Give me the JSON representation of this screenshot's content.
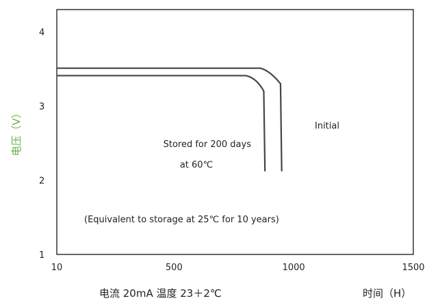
{
  "chart_data": {
    "type": "line",
    "xlim": [
      10,
      1500
    ],
    "ylim": [
      1,
      4.3
    ],
    "x_ticks": [
      10,
      500,
      1000,
      1500
    ],
    "x_tick_labels": [
      "10",
      "500",
      "1000",
      "1500"
    ],
    "y_ticks": [
      1,
      2,
      3,
      4
    ],
    "y_tick_labels": [
      "1",
      "2",
      "3",
      "4"
    ],
    "ylabel": "电压（V）",
    "xlabel_left": "电流  20mA   温度  23＋2℃",
    "xlabel_right": "时间（H）",
    "grid": false,
    "colors": {
      "line": "#444444",
      "ylabel": "#6ab04c",
      "frame": "#000000"
    },
    "series": [
      {
        "name": "Initial",
        "x": [
          10,
          860,
          900,
          945,
          950
        ],
        "y": [
          3.51,
          3.51,
          3.48,
          3.3,
          2.12
        ]
      },
      {
        "name": "Stored for 200 days at 60℃",
        "x": [
          10,
          800,
          845,
          875,
          880
        ],
        "y": [
          3.41,
          3.41,
          3.38,
          3.2,
          2.12
        ]
      }
    ],
    "annotations": {
      "initial": "Initial",
      "stored_line1": "Stored for 200 days",
      "stored_line2": "at 60℃",
      "equivalent": "(Equivalent to storage at 25℃ for 10 years)"
    }
  }
}
